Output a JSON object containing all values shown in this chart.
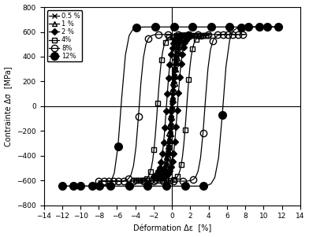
{
  "title": "",
  "xlabel": "Déformation Δε  [%]",
  "ylabel": "Contrainte Δσ  [MPa]",
  "xlim": [
    -14,
    14
  ],
  "ylim": [
    -800,
    800
  ],
  "xticks": [
    -14,
    -12,
    -10,
    -8,
    -6,
    -4,
    -2,
    0,
    2,
    4,
    6,
    8,
    10,
    12,
    14
  ],
  "yticks": [
    -800,
    -600,
    -400,
    -200,
    0,
    200,
    400,
    600,
    800
  ],
  "loops": [
    {
      "label": "0.5 %",
      "amp": 0.5,
      "sigma_max": 575,
      "sigma_min": -575,
      "elastic_slope": 70000,
      "marker": "x",
      "fillstyle": "none",
      "markersize": 4,
      "markevery": 2
    },
    {
      "label": "1 %",
      "amp": 1.0,
      "sigma_max": 575,
      "sigma_min": -575,
      "elastic_slope": 70000,
      "marker": "^",
      "fillstyle": "none",
      "markersize": 4,
      "markevery": 2
    },
    {
      "label": "2 %",
      "amp": 2.0,
      "sigma_max": 575,
      "sigma_min": -575,
      "elastic_slope": 70000,
      "marker": "D",
      "fillstyle": "full",
      "markersize": 4,
      "markevery": 2
    },
    {
      "label": "4%",
      "amp": 4.0,
      "sigma_max": 570,
      "sigma_min": -600,
      "elastic_slope": 70000,
      "marker": "s",
      "fillstyle": "none",
      "markersize": 5,
      "markevery": 3
    },
    {
      "label": "8%",
      "amp": 8.0,
      "sigma_max": 580,
      "sigma_min": -605,
      "elastic_slope": 70000,
      "marker": "o",
      "fillstyle": "none",
      "markersize": 6,
      "markevery": 4
    },
    {
      "label": "12%",
      "amp": 12.0,
      "sigma_max": 640,
      "sigma_min": -645,
      "elastic_slope": 70000,
      "marker": "o",
      "fillstyle": "full",
      "markersize": 7,
      "markevery": 5
    }
  ],
  "color": "black",
  "linewidth": 0.9,
  "background_color": "white"
}
